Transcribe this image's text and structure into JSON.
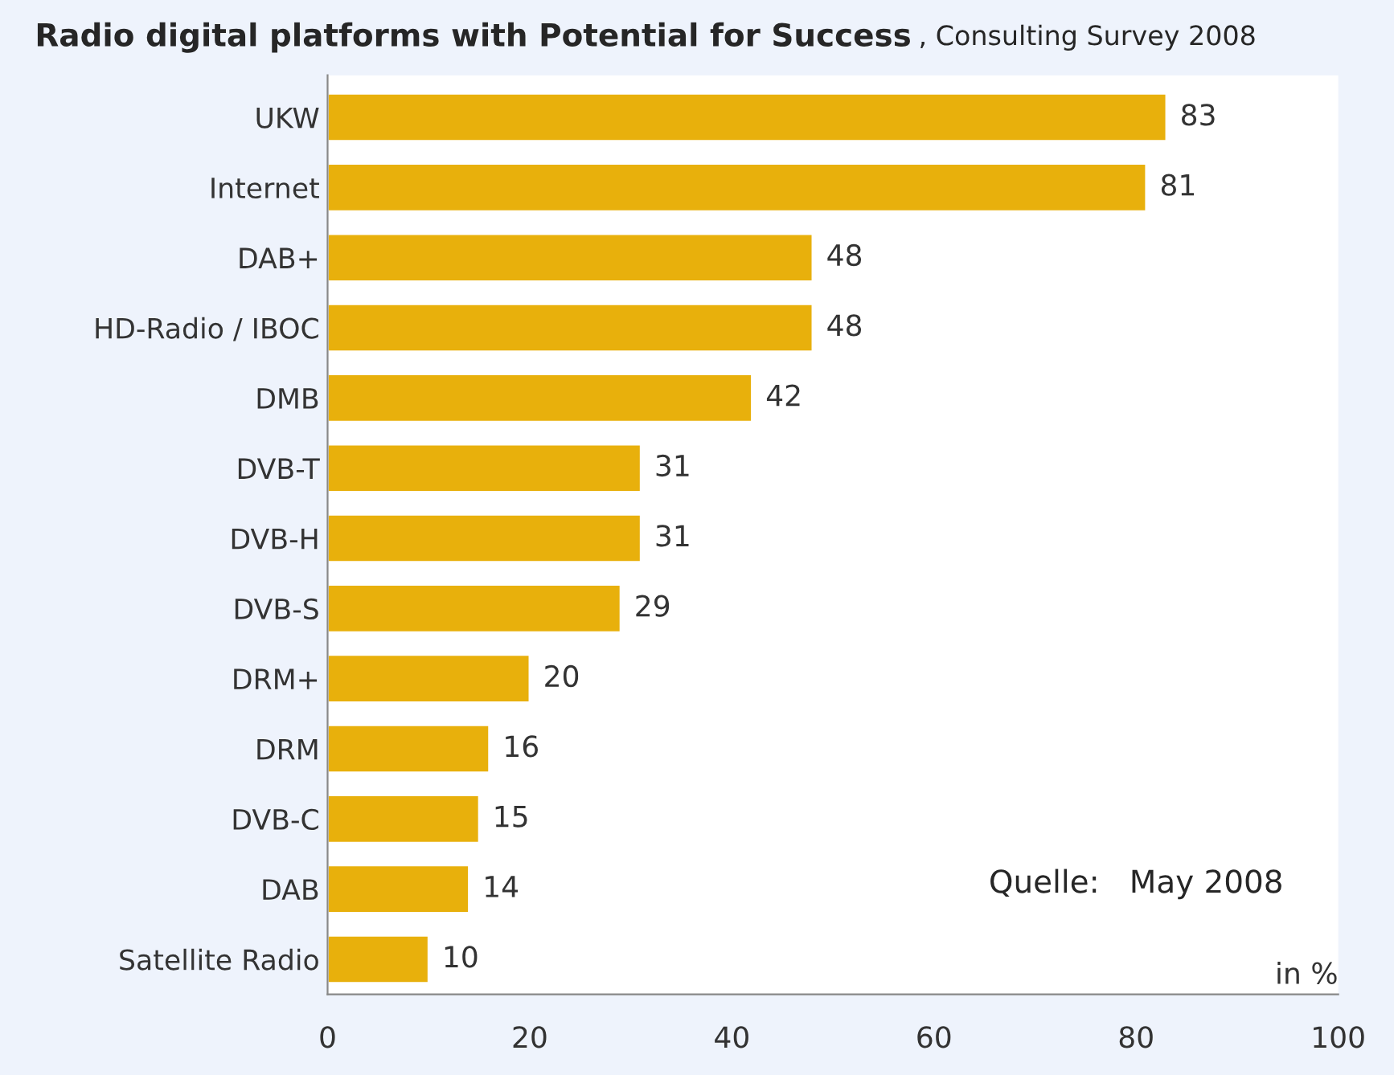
{
  "chart_data": {
    "type": "bar",
    "orientation": "horizontal",
    "title": "Radio digital platforms with Potential for Success",
    "subtitle": ", Consulting Survey 2008",
    "xlabel": "in %",
    "categories": [
      "UKW",
      "Internet",
      "DAB+",
      "HD-Radio / IBOC",
      "DMB",
      "DVB-T",
      "DVB-H",
      "DVB-S",
      "DRM+",
      "DRM",
      "DVB-C",
      "DAB",
      "Satellite Radio"
    ],
    "values": [
      83,
      81,
      48,
      48,
      42,
      31,
      31,
      29,
      20,
      16,
      15,
      14,
      10
    ],
    "color": "#e8b00c",
    "data_labels": true,
    "xlim": [
      0,
      100
    ],
    "xticks": [
      0,
      20,
      40,
      60,
      80,
      100
    ],
    "grid": false,
    "annotations": [
      "Quelle:   May 2008"
    ]
  }
}
